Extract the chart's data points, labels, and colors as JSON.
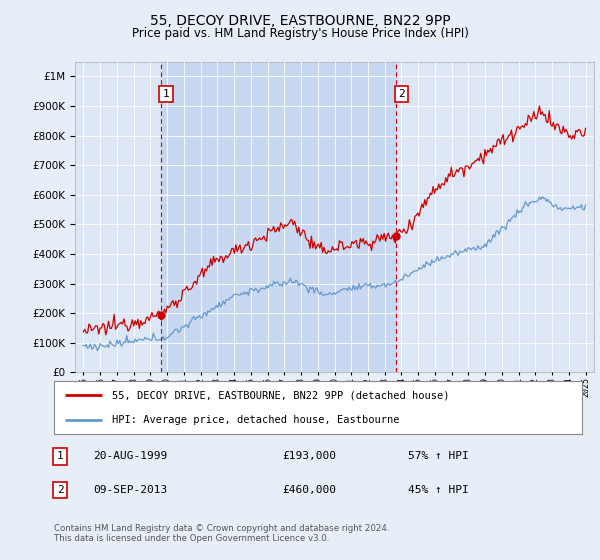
{
  "title": "55, DECOY DRIVE, EASTBOURNE, BN22 9PP",
  "subtitle": "Price paid vs. HM Land Registry's House Price Index (HPI)",
  "legend_line1": "55, DECOY DRIVE, EASTBOURNE, BN22 9PP (detached house)",
  "legend_line2": "HPI: Average price, detached house, Eastbourne",
  "annotation1_date": "20-AUG-1999",
  "annotation1_price": "£193,000",
  "annotation1_hpi": "57% ↑ HPI",
  "annotation2_date": "09-SEP-2013",
  "annotation2_price": "£460,000",
  "annotation2_hpi": "45% ↑ HPI",
  "footer": "Contains HM Land Registry data © Crown copyright and database right 2024.\nThis data is licensed under the Open Government Licence v3.0.",
  "red_color": "#cc0000",
  "blue_color": "#6699cc",
  "background_color": "#e8eef8",
  "plot_bg_color": "#dce6f5",
  "shade_color": "#c8d8f0",
  "marker1_x": 1999.64,
  "marker1_y": 193000,
  "marker2_x": 2013.69,
  "marker2_y": 460000,
  "ylim": [
    0,
    1050000
  ],
  "xlim_start": 1994.5,
  "xlim_end": 2025.5
}
